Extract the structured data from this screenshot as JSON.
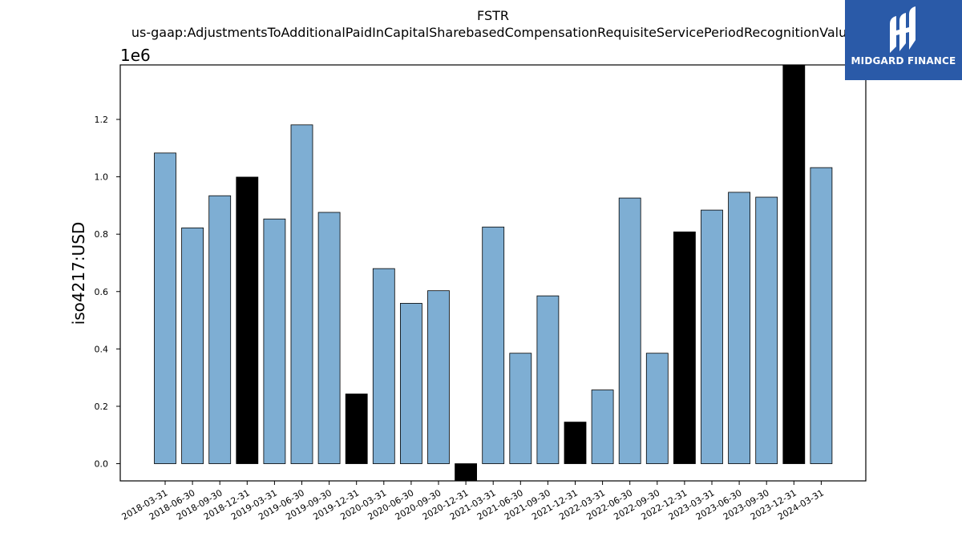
{
  "chart_data": {
    "type": "bar",
    "title": "FSTR",
    "subtitle": "us-gaap:AdjustmentsToAdditionalPaidInCapitalSharebasedCompensationRequisiteServicePeriodRecognitionValue",
    "ylabel": "iso4217:USD",
    "xlabel": "",
    "y_offset_label": "1e6",
    "ylim": [
      -60000,
      1390000
    ],
    "yticks": [
      0.0,
      0.2,
      0.4,
      0.6,
      0.8,
      1.0,
      1.2
    ],
    "ytick_labels": [
      "0.0",
      "0.2",
      "0.4",
      "0.6",
      "0.8",
      "1.0",
      "1.2"
    ],
    "categories": [
      "2018-03-31",
      "2018-06-30",
      "2018-09-30",
      "2018-12-31",
      "2019-03-31",
      "2019-06-30",
      "2019-09-30",
      "2019-12-31",
      "2020-03-31",
      "2020-06-30",
      "2020-09-30",
      "2020-12-31",
      "2021-03-31",
      "2021-06-30",
      "2021-09-30",
      "2021-12-31",
      "2022-03-31",
      "2022-06-30",
      "2022-09-30",
      "2022-12-31",
      "2023-03-31",
      "2023-06-30",
      "2023-09-30",
      "2023-12-31",
      "2024-03-31"
    ],
    "values": [
      1083000,
      822000,
      934000,
      999000,
      853000,
      1181000,
      876000,
      243000,
      680000,
      559000,
      603000,
      -60000,
      825000,
      385000,
      585000,
      145000,
      257000,
      926000,
      385000,
      808000,
      884000,
      946000,
      929000,
      1395000,
      1032000
    ],
    "bar_colors": [
      "#7eaed3",
      "#7eaed3",
      "#7eaed3",
      "#000000",
      "#7eaed3",
      "#7eaed3",
      "#7eaed3",
      "#000000",
      "#7eaed3",
      "#7eaed3",
      "#7eaed3",
      "#000000",
      "#7eaed3",
      "#7eaed3",
      "#7eaed3",
      "#000000",
      "#7eaed3",
      "#7eaed3",
      "#7eaed3",
      "#000000",
      "#7eaed3",
      "#7eaed3",
      "#7eaed3",
      "#000000",
      "#7eaed3"
    ],
    "grid": false
  },
  "logo": {
    "text": "MIDGARD FINANCE",
    "color": "#2a5aa8"
  }
}
